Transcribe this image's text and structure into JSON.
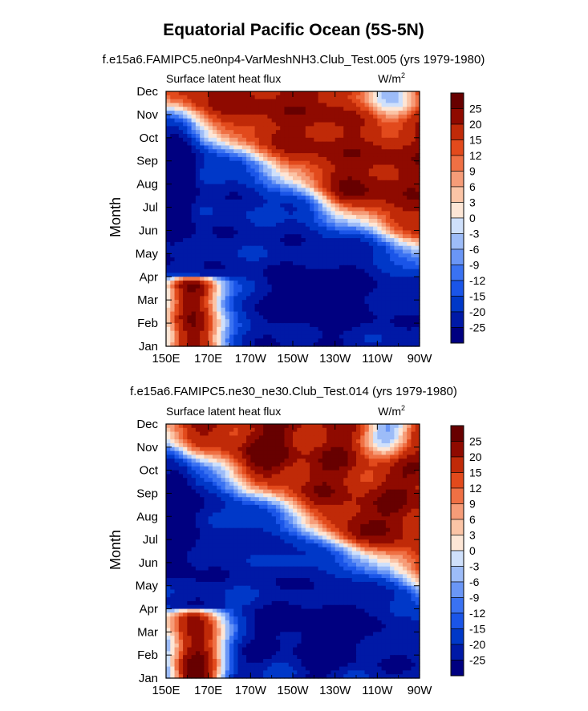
{
  "figure": {
    "title": "Equatorial Pacific Ocean (5S-5N)"
  },
  "colorbar": {
    "levels": [
      -25,
      -20,
      -15,
      -12,
      -9,
      -6,
      -3,
      0,
      3,
      6,
      9,
      12,
      15,
      20,
      25
    ],
    "labels": [
      "25",
      "20",
      "15",
      "12",
      "9",
      "6",
      "3",
      "0",
      "-3",
      "-6",
      "-9",
      "-12",
      "-15",
      "-20",
      "-25"
    ],
    "colors": [
      "#000080",
      "#0019a6",
      "#0038c8",
      "#1a55e8",
      "#3a72f2",
      "#6a96f6",
      "#9dbcf8",
      "#cfe0fb",
      "#fde6d6",
      "#fbc4a6",
      "#f69c78",
      "#ef7044",
      "#e24a1c",
      "#c02a08",
      "#8f0a00",
      "#670000"
    ]
  },
  "chart_data": [
    {
      "type": "heatmap",
      "subtitle": "f.e15a6.FAMIPC5.ne0np4-VarMeshNH3.Club_Test.005 (yrs 1979-1980)",
      "left_label": "Surface latent heat flux",
      "units_label": "W/m",
      "units_exp": "2",
      "ylabel": "Month",
      "xlabel": "",
      "x_ticks": [
        "150E",
        "170E",
        "170W",
        "150W",
        "130W",
        "110W",
        "90W"
      ],
      "y_ticks": [
        "Jan",
        "Feb",
        "Mar",
        "Apr",
        "May",
        "Jun",
        "Jul",
        "Aug",
        "Sep",
        "Oct",
        "Nov",
        "Dec"
      ],
      "xlim": [
        150,
        270
      ],
      "ylim": [
        1,
        12
      ],
      "variant": 0
    },
    {
      "type": "heatmap",
      "subtitle": "f.e15a6.FAMIPC5.ne30_ne30.Club_Test.014 (yrs 1979-1980)",
      "left_label": "Surface latent heat flux",
      "units_label": "W/m",
      "units_exp": "2",
      "ylabel": "Month",
      "xlabel": "",
      "x_ticks": [
        "150E",
        "170E",
        "170W",
        "150W",
        "130W",
        "110W",
        "90W"
      ],
      "y_ticks": [
        "Jan",
        "Feb",
        "Mar",
        "Apr",
        "May",
        "Jun",
        "Jul",
        "Aug",
        "Sep",
        "Oct",
        "Nov",
        "Dec"
      ],
      "xlim": [
        150,
        270
      ],
      "ylim": [
        1,
        12
      ],
      "variant": 1
    }
  ]
}
